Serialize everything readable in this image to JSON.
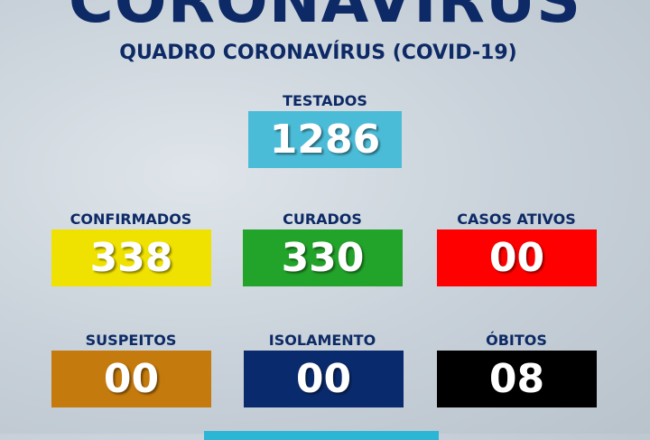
{
  "title": "CORONAVÍRUS",
  "subtitle": "QUADRO CORONAVÍRUS (COVID-19)",
  "stats": [
    {
      "label": "TESTADOS",
      "value": "1286",
      "color": "#4bbcd8"
    },
    {
      "label": "CONFIRMADOS",
      "value": "338",
      "color": "#f0e200"
    },
    {
      "label": "CURADOS",
      "value": "330",
      "color": "#22a32a"
    },
    {
      "label": "CASOS ATIVOS",
      "value": "00",
      "color": "#ff0000"
    },
    {
      "label": "SUSPEITOS",
      "value": "00",
      "color": "#c47a0c"
    },
    {
      "label": "ISOLAMENTO",
      "value": "00",
      "color": "#0a2a6e"
    },
    {
      "label": "ÓBITOS",
      "value": "08",
      "color": "#000000"
    }
  ],
  "bottom_bar_color": "#2bb6d6"
}
